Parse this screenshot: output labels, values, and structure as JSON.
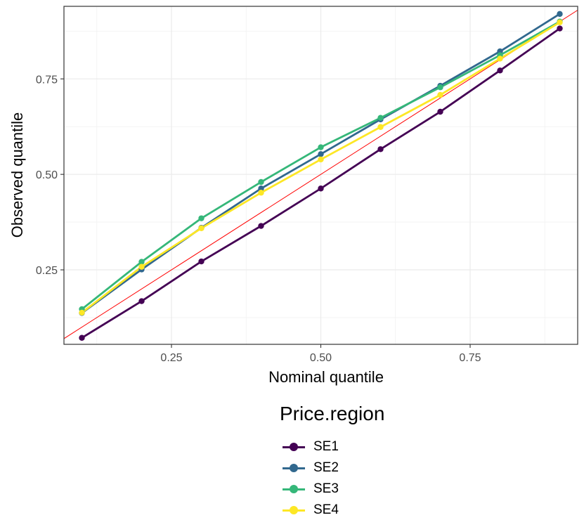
{
  "chart_data": {
    "type": "line",
    "xlabel": "Nominal quantile",
    "ylabel": "Observed quantile",
    "xlim": [
      0.07,
      0.93
    ],
    "ylim": [
      0.055,
      0.94
    ],
    "x_ticks": [
      0.25,
      0.5,
      0.75
    ],
    "x_tick_labels": [
      "0.25",
      "0.50",
      "0.75"
    ],
    "y_ticks": [
      0.25,
      0.5,
      0.75
    ],
    "y_tick_labels": [
      "0.25",
      "0.50",
      "0.75"
    ],
    "grid": true,
    "legend_position": "bottom",
    "legend_title": "Price.region",
    "reference_line": {
      "type": "identity",
      "color": "#ff0000"
    },
    "x": [
      0.1,
      0.2,
      0.3,
      0.4,
      0.5,
      0.6,
      0.7,
      0.8,
      0.9
    ],
    "series": [
      {
        "name": "SE1",
        "color": "#440154",
        "values": [
          0.072,
          0.168,
          0.272,
          0.365,
          0.463,
          0.566,
          0.664,
          0.772,
          0.882
        ]
      },
      {
        "name": "SE2",
        "color": "#31688e",
        "values": [
          0.137,
          0.251,
          0.36,
          0.463,
          0.553,
          0.644,
          0.732,
          0.822,
          0.92
        ]
      },
      {
        "name": "SE3",
        "color": "#35b779",
        "values": [
          0.147,
          0.271,
          0.385,
          0.48,
          0.571,
          0.648,
          0.728,
          0.812,
          0.9
        ]
      },
      {
        "name": "SE4",
        "color": "#fde725",
        "values": [
          0.138,
          0.258,
          0.359,
          0.452,
          0.539,
          0.624,
          0.708,
          0.803,
          0.898
        ]
      }
    ]
  }
}
